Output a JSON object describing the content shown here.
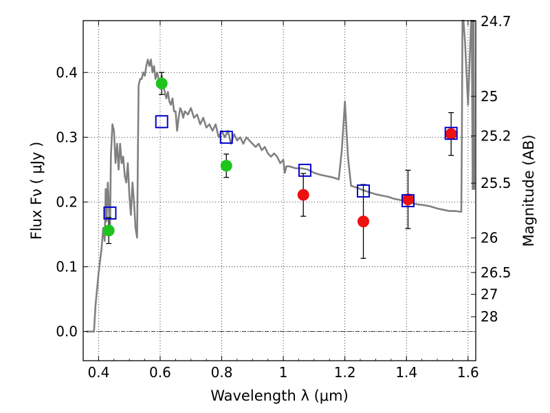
{
  "chart_data": {
    "type": "scatter",
    "xlabel": "Wavelength  λ (μm)",
    "ylabel": "Flux  Fν  ( μJy )",
    "y2label": "Magnitude (AB)",
    "xlim": [
      0.35,
      1.625
    ],
    "ylim": [
      -0.045,
      0.48
    ],
    "xticks": [
      0.4,
      0.6,
      0.8,
      1.0,
      1.2,
      1.4,
      1.6
    ],
    "xtick_labels": [
      "0.4",
      "0.6",
      "0.8",
      "1",
      "1.2",
      "1.4",
      "1.6"
    ],
    "yticks": [
      0.0,
      0.1,
      0.2,
      0.3,
      0.4
    ],
    "ytick_labels": [
      "0.0",
      "0.1",
      "0.2",
      "0.3",
      "0.4"
    ],
    "y2ticks": [
      {
        "label": "24.7",
        "flux": 0.4791
      },
      {
        "label": "25",
        "flux": 0.3631
      },
      {
        "label": "25.2",
        "flux": 0.302
      },
      {
        "label": "25.5",
        "flux": 0.2291
      },
      {
        "label": "26",
        "flux": 0.1445
      },
      {
        "label": "26.5",
        "flux": 0.0912
      },
      {
        "label": "27",
        "flux": 0.0575
      },
      {
        "label": "28",
        "flux": 0.0229
      }
    ],
    "grid": true,
    "colors": {
      "model": "#808080",
      "green": "#1dc41d",
      "red": "#ee1111",
      "squares": "#0000cc",
      "errorbars": "#000000"
    },
    "model_sed": {
      "x": [
        0.36,
        0.385,
        0.39,
        0.4,
        0.41,
        0.415,
        0.42,
        0.423,
        0.426,
        0.43,
        0.433,
        0.437,
        0.44,
        0.445,
        0.45,
        0.455,
        0.46,
        0.465,
        0.47,
        0.475,
        0.48,
        0.485,
        0.49,
        0.495,
        0.5,
        0.505,
        0.51,
        0.515,
        0.52,
        0.525,
        0.53,
        0.535,
        0.54,
        0.545,
        0.55,
        0.555,
        0.56,
        0.565,
        0.57,
        0.575,
        0.58,
        0.585,
        0.59,
        0.595,
        0.6,
        0.605,
        0.61,
        0.615,
        0.62,
        0.625,
        0.63,
        0.635,
        0.64,
        0.645,
        0.65,
        0.655,
        0.66,
        0.665,
        0.67,
        0.675,
        0.68,
        0.69,
        0.7,
        0.71,
        0.72,
        0.73,
        0.74,
        0.75,
        0.76,
        0.77,
        0.78,
        0.79,
        0.8,
        0.81,
        0.82,
        0.83,
        0.84,
        0.85,
        0.86,
        0.87,
        0.88,
        0.89,
        0.9,
        0.91,
        0.92,
        0.93,
        0.94,
        0.95,
        0.96,
        0.97,
        0.98,
        0.99,
        1.0,
        1.005,
        1.01,
        1.02,
        1.04,
        1.06,
        1.08,
        1.1,
        1.12,
        1.14,
        1.16,
        1.18,
        1.19,
        1.2,
        1.203,
        1.21,
        1.22,
        1.24,
        1.26,
        1.28,
        1.3,
        1.32,
        1.34,
        1.36,
        1.38,
        1.4,
        1.42,
        1.44,
        1.46,
        1.48,
        1.5,
        1.52,
        1.54,
        1.56,
        1.575,
        1.578,
        1.58,
        1.582,
        1.585,
        1.59,
        1.6,
        1.61,
        1.612,
        1.615,
        1.618,
        1.62,
        1.62
      ],
      "y": [
        0.0,
        0.0,
        0.04,
        0.09,
        0.13,
        0.16,
        0.14,
        0.22,
        0.17,
        0.23,
        0.2,
        0.15,
        0.27,
        0.32,
        0.31,
        0.26,
        0.29,
        0.25,
        0.29,
        0.26,
        0.27,
        0.24,
        0.23,
        0.26,
        0.21,
        0.18,
        0.23,
        0.2,
        0.16,
        0.145,
        0.38,
        0.39,
        0.39,
        0.4,
        0.395,
        0.41,
        0.42,
        0.41,
        0.42,
        0.4,
        0.41,
        0.39,
        0.4,
        0.39,
        0.38,
        0.395,
        0.38,
        0.37,
        0.36,
        0.37,
        0.355,
        0.35,
        0.36,
        0.34,
        0.34,
        0.31,
        0.33,
        0.345,
        0.34,
        0.33,
        0.34,
        0.335,
        0.345,
        0.33,
        0.335,
        0.32,
        0.33,
        0.315,
        0.32,
        0.31,
        0.32,
        0.3,
        0.31,
        0.3,
        0.31,
        0.29,
        0.305,
        0.295,
        0.3,
        0.29,
        0.3,
        0.295,
        0.29,
        0.285,
        0.29,
        0.28,
        0.285,
        0.275,
        0.27,
        0.275,
        0.27,
        0.26,
        0.265,
        0.245,
        0.255,
        0.255,
        0.252,
        0.252,
        0.25,
        0.245,
        0.242,
        0.24,
        0.238,
        0.235,
        0.28,
        0.355,
        0.33,
        0.27,
        0.225,
        0.222,
        0.218,
        0.215,
        0.212,
        0.21,
        0.208,
        0.205,
        0.203,
        0.201,
        0.198,
        0.196,
        0.195,
        0.193,
        0.19,
        0.188,
        0.186,
        0.186,
        0.185,
        0.185,
        0.3,
        0.48,
        0.48,
        0.45,
        0.35,
        0.48,
        0.48,
        0.22,
        0.48,
        0.22,
        0.3
      ]
    },
    "series": [
      {
        "name": "green-points",
        "marker": "circle",
        "color": "green",
        "x": [
          0.433,
          0.605,
          0.815
        ],
        "y": [
          0.156,
          0.383,
          0.256
        ],
        "yerr": [
          0.02,
          0.017,
          0.018
        ]
      },
      {
        "name": "red-points",
        "marker": "circle",
        "color": "red",
        "x": [
          1.065,
          1.26,
          1.405,
          1.545
        ],
        "y": [
          0.211,
          0.17,
          0.204,
          0.305
        ],
        "yerr": [
          0.033,
          0.057,
          0.045,
          0.033
        ]
      },
      {
        "name": "model-squares",
        "marker": "open-square",
        "color": "squares",
        "x": [
          0.437,
          0.605,
          0.815,
          1.07,
          1.26,
          1.405,
          1.545
        ],
        "y": [
          0.183,
          0.324,
          0.3,
          0.249,
          0.217,
          0.202,
          0.306
        ]
      }
    ]
  }
}
